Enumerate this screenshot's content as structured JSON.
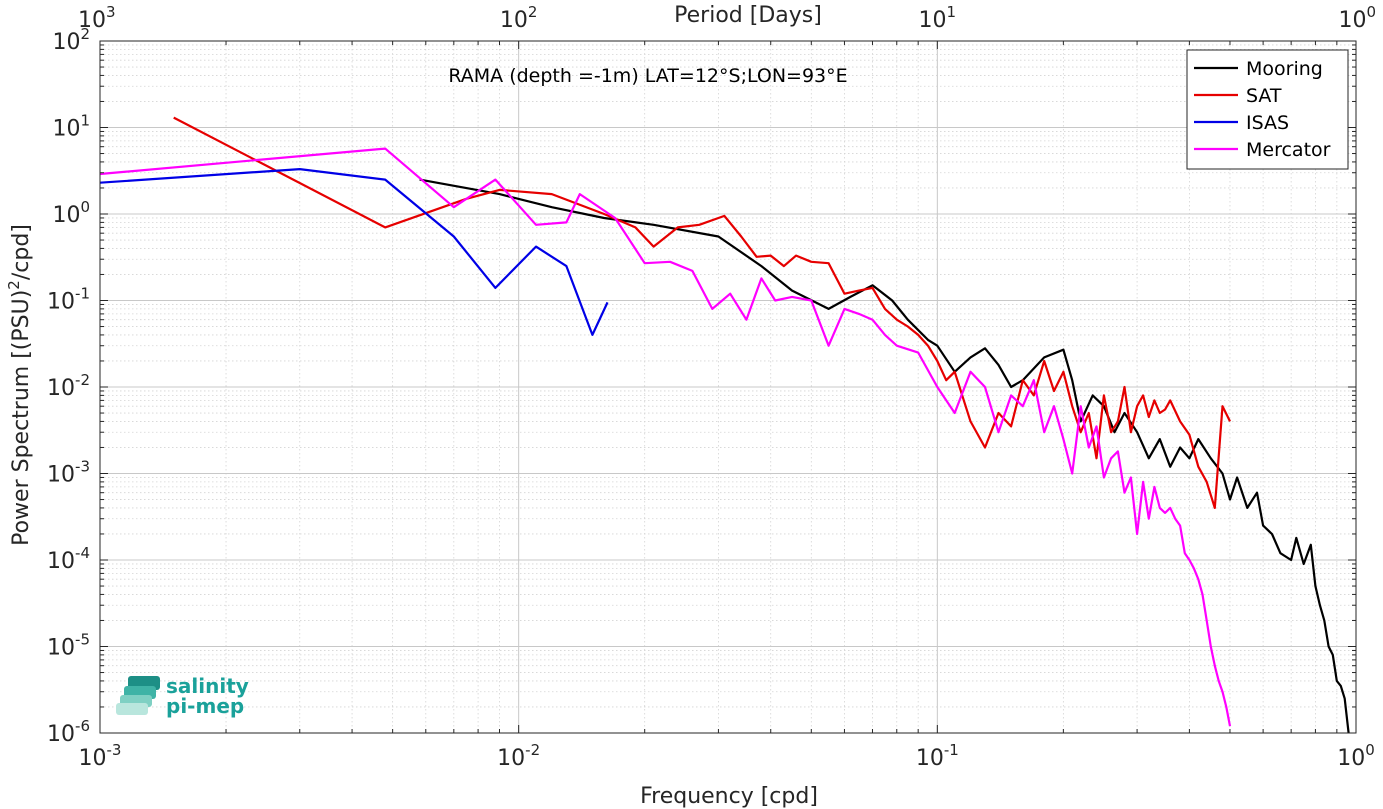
{
  "chart_data": {
    "type": "line",
    "x_scale": "log",
    "y_scale": "log",
    "xlim": [
      0.001,
      1
    ],
    "ylim": [
      1e-06,
      100
    ],
    "grid": true,
    "minor_grid": true,
    "legend_position": "top-right",
    "annotation": "RAMA (depth =-1m) LAT=12°S;LON=93°E",
    "xlabel": "Frequency [cpd]",
    "ylabel_base": "Power Spectrum [(PSU)",
    "ylabel_sup": "2",
    "ylabel_tail": "/cpd]",
    "top_xlabel": "Period [Days]",
    "x_ticks": [
      {
        "value": 0.001,
        "base": "10",
        "exp": "-3"
      },
      {
        "value": 0.01,
        "base": "10",
        "exp": "-2"
      },
      {
        "value": 0.1,
        "base": "10",
        "exp": "-1"
      },
      {
        "value": 1,
        "base": "10",
        "exp": "0"
      }
    ],
    "top_ticks": [
      {
        "value": 0.001,
        "base": "10",
        "exp": "3"
      },
      {
        "value": 0.01,
        "base": "10",
        "exp": "2"
      },
      {
        "value": 0.1,
        "base": "10",
        "exp": "1"
      },
      {
        "value": 1,
        "base": "10",
        "exp": "0"
      }
    ],
    "y_ticks": [
      {
        "value": 1e-06,
        "base": "10",
        "exp": "-6"
      },
      {
        "value": 1e-05,
        "base": "10",
        "exp": "-5"
      },
      {
        "value": 0.0001,
        "base": "10",
        "exp": "-4"
      },
      {
        "value": 0.001,
        "base": "10",
        "exp": "-3"
      },
      {
        "value": 0.01,
        "base": "10",
        "exp": "-2"
      },
      {
        "value": 0.1,
        "base": "10",
        "exp": "-1"
      },
      {
        "value": 1,
        "base": "10",
        "exp": "0"
      },
      {
        "value": 10,
        "base": "10",
        "exp": "1"
      },
      {
        "value": 100,
        "base": "10",
        "exp": "2"
      }
    ],
    "series": [
      {
        "name": "Mooring",
        "color": "#000000",
        "x": [
          0.0058,
          0.009,
          0.012,
          0.016,
          0.021,
          0.03,
          0.038,
          0.045,
          0.055,
          0.062,
          0.07,
          0.078,
          0.085,
          0.095,
          0.1,
          0.11,
          0.12,
          0.13,
          0.14,
          0.15,
          0.16,
          0.18,
          0.2,
          0.21,
          0.22,
          0.235,
          0.25,
          0.265,
          0.28,
          0.3,
          0.32,
          0.34,
          0.36,
          0.38,
          0.4,
          0.42,
          0.45,
          0.48,
          0.5,
          0.52,
          0.55,
          0.58,
          0.6,
          0.63,
          0.66,
          0.7,
          0.72,
          0.75,
          0.78,
          0.8,
          0.82,
          0.84,
          0.86,
          0.88,
          0.9,
          0.92,
          0.94,
          0.96
        ],
        "y": [
          2.5,
          1.7,
          1.2,
          0.9,
          0.75,
          0.55,
          0.25,
          0.13,
          0.08,
          0.11,
          0.15,
          0.1,
          0.06,
          0.035,
          0.03,
          0.015,
          0.022,
          0.028,
          0.018,
          0.01,
          0.012,
          0.022,
          0.027,
          0.012,
          0.004,
          0.008,
          0.006,
          0.003,
          0.005,
          0.003,
          0.0015,
          0.0025,
          0.0012,
          0.002,
          0.0015,
          0.0025,
          0.0015,
          0.001,
          0.0005,
          0.0009,
          0.0004,
          0.0006,
          0.00025,
          0.0002,
          0.00012,
          0.0001,
          0.00018,
          9e-05,
          0.00015,
          5e-05,
          3e-05,
          2e-05,
          1e-05,
          8e-06,
          4e-06,
          3.5e-06,
          2.5e-06,
          1e-06
        ]
      },
      {
        "name": "SAT",
        "color": "#e60000",
        "x": [
          0.0015,
          0.0048,
          0.0075,
          0.009,
          0.012,
          0.016,
          0.019,
          0.021,
          0.024,
          0.027,
          0.031,
          0.034,
          0.037,
          0.04,
          0.043,
          0.046,
          0.05,
          0.055,
          0.06,
          0.065,
          0.07,
          0.075,
          0.08,
          0.085,
          0.09,
          0.095,
          0.1,
          0.105,
          0.11,
          0.12,
          0.13,
          0.14,
          0.15,
          0.16,
          0.17,
          0.18,
          0.19,
          0.2,
          0.21,
          0.22,
          0.23,
          0.24,
          0.25,
          0.26,
          0.27,
          0.28,
          0.29,
          0.3,
          0.31,
          0.32,
          0.33,
          0.34,
          0.35,
          0.36,
          0.38,
          0.4,
          0.42,
          0.44,
          0.46,
          0.48,
          0.5
        ],
        "y": [
          13,
          0.7,
          1.5,
          1.9,
          1.7,
          1.0,
          0.7,
          0.42,
          0.7,
          0.75,
          0.95,
          0.55,
          0.32,
          0.33,
          0.25,
          0.33,
          0.28,
          0.27,
          0.12,
          0.13,
          0.14,
          0.08,
          0.06,
          0.05,
          0.04,
          0.03,
          0.02,
          0.012,
          0.015,
          0.004,
          0.002,
          0.005,
          0.0035,
          0.012,
          0.008,
          0.02,
          0.009,
          0.015,
          0.006,
          0.003,
          0.005,
          0.0015,
          0.008,
          0.003,
          0.004,
          0.01,
          0.003,
          0.006,
          0.008,
          0.0045,
          0.007,
          0.005,
          0.0055,
          0.007,
          0.004,
          0.0028,
          0.0012,
          0.0008,
          0.0004,
          0.006,
          0.004
        ]
      },
      {
        "name": "ISAS",
        "color": "#0000e6",
        "x": [
          0.001,
          0.003,
          0.0048,
          0.007,
          0.0088,
          0.011,
          0.013,
          0.015,
          0.0163
        ],
        "y": [
          2.3,
          3.3,
          2.5,
          0.55,
          0.14,
          0.42,
          0.25,
          0.04,
          0.095
        ]
      },
      {
        "name": "Mercator",
        "color": "#ff00ff",
        "x": [
          0.001,
          0.0048,
          0.007,
          0.0088,
          0.011,
          0.013,
          0.014,
          0.017,
          0.02,
          0.023,
          0.026,
          0.029,
          0.032,
          0.035,
          0.038,
          0.041,
          0.045,
          0.05,
          0.055,
          0.06,
          0.065,
          0.07,
          0.075,
          0.08,
          0.09,
          0.1,
          0.11,
          0.12,
          0.13,
          0.14,
          0.15,
          0.16,
          0.17,
          0.18,
          0.19,
          0.2,
          0.21,
          0.22,
          0.23,
          0.24,
          0.25,
          0.26,
          0.27,
          0.28,
          0.29,
          0.3,
          0.31,
          0.32,
          0.33,
          0.34,
          0.35,
          0.36,
          0.37,
          0.38,
          0.39,
          0.4,
          0.41,
          0.42,
          0.43,
          0.44,
          0.45,
          0.46,
          0.47,
          0.48,
          0.49,
          0.5
        ],
        "y": [
          2.9,
          5.7,
          1.2,
          2.5,
          0.75,
          0.8,
          1.7,
          0.9,
          0.27,
          0.28,
          0.22,
          0.08,
          0.12,
          0.06,
          0.18,
          0.1,
          0.11,
          0.1,
          0.03,
          0.08,
          0.07,
          0.06,
          0.04,
          0.03,
          0.025,
          0.01,
          0.005,
          0.015,
          0.01,
          0.003,
          0.008,
          0.006,
          0.012,
          0.003,
          0.006,
          0.0025,
          0.001,
          0.006,
          0.002,
          0.0035,
          0.0009,
          0.0015,
          0.0018,
          0.0006,
          0.0009,
          0.0002,
          0.0008,
          0.0003,
          0.0007,
          0.0004,
          0.00035,
          0.0004,
          0.0003,
          0.00025,
          0.00012,
          0.0001,
          8e-05,
          6e-05,
          4e-05,
          2e-05,
          1e-05,
          6e-06,
          4e-06,
          3e-06,
          2e-06,
          1.2e-06
        ]
      }
    ]
  },
  "logo": {
    "line1": "salinity",
    "line2": "pi-mep"
  }
}
